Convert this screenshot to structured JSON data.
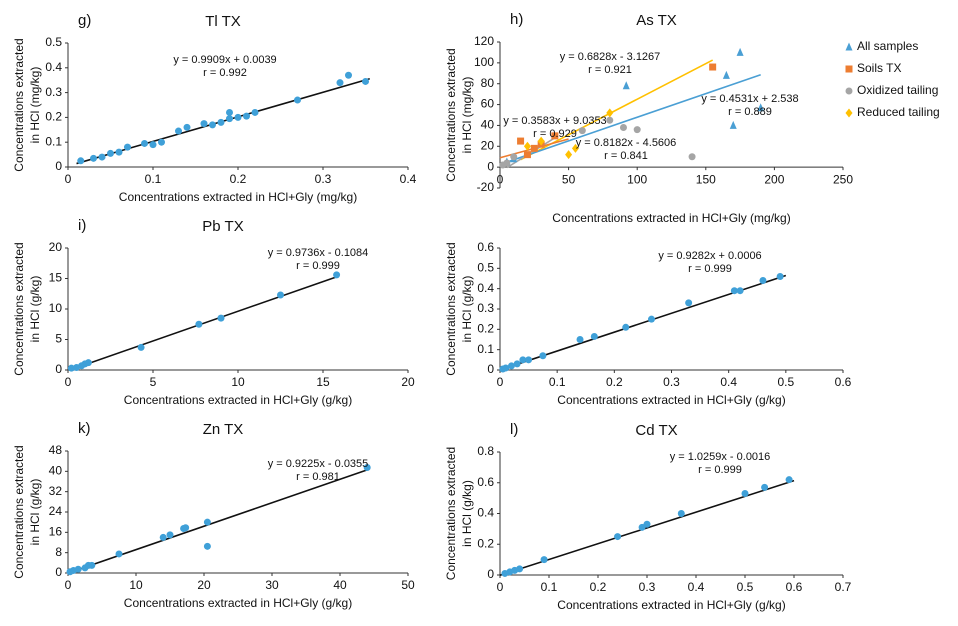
{
  "chart_data": [
    {
      "type": "scatter",
      "panel_label": "g)",
      "title": "Tl TX",
      "xlabel": "Concentrations extracted in HCl+Gly (mg/kg)",
      "ylabel": [
        "Concentrations extracted",
        "in HCl  (mg/kg)"
      ],
      "xlim": [
        0,
        0.4
      ],
      "xticks": [
        0,
        0.1,
        0.2,
        0.3,
        0.4
      ],
      "ylim": [
        0,
        0.5
      ],
      "yticks": [
        0,
        0.1,
        0.2,
        0.3,
        0.4,
        0.5
      ],
      "series": [
        {
          "color": "#3fa0d8",
          "marker": "circle",
          "x": [
            0.015,
            0.03,
            0.04,
            0.05,
            0.06,
            0.07,
            0.09,
            0.1,
            0.11,
            0.13,
            0.14,
            0.16,
            0.17,
            0.18,
            0.19,
            0.19,
            0.2,
            0.21,
            0.22,
            0.27,
            0.32,
            0.33,
            0.35
          ],
          "values": [
            0.025,
            0.035,
            0.04,
            0.055,
            0.06,
            0.08,
            0.095,
            0.09,
            0.1,
            0.145,
            0.16,
            0.175,
            0.17,
            0.18,
            0.22,
            0.195,
            0.2,
            0.205,
            0.22,
            0.27,
            0.34,
            0.37,
            0.345
          ]
        }
      ],
      "fits": [
        {
          "label": "y = 0.9909x + 0.0039",
          "r_label": "r = 0.992",
          "slope": 0.9909,
          "intercept": 0.0039,
          "x": [
            0.01,
            0.355
          ],
          "color": "#111111"
        }
      ]
    },
    {
      "type": "scatter",
      "panel_label": "h)",
      "title": "As TX",
      "xlabel": "Concentrations extracted in HCl+Gly (mg/kg)",
      "ylabel": [
        "Concentrations extracted",
        "in HCl  (mg/kg)"
      ],
      "xlim": [
        0,
        250
      ],
      "xticks": [
        0,
        50,
        100,
        150,
        200,
        250
      ],
      "ylim": [
        -20,
        120
      ],
      "yticks": [
        -20,
        0,
        20,
        40,
        60,
        80,
        100,
        120
      ],
      "series": [
        {
          "name": "All samples",
          "color": "#4a9fd4",
          "marker": "triangle",
          "x": [
            175,
            190,
            170,
            5,
            10,
            92,
            165
          ],
          "values": [
            110,
            57,
            40,
            5,
            8,
            78,
            88
          ]
        },
        {
          "name": "Soils TX",
          "color": "#ed7d31",
          "marker": "square",
          "x": [
            20,
            25,
            30,
            155,
            40,
            15
          ],
          "values": [
            12,
            18,
            22,
            96,
            30,
            25
          ]
        },
        {
          "name": "Oxidized tailing",
          "color": "#a5a5a5",
          "marker": "circle",
          "x": [
            90,
            60,
            10,
            5,
            2,
            80,
            100,
            140
          ],
          "values": [
            38,
            35,
            10,
            4,
            2,
            45,
            36,
            10
          ]
        },
        {
          "name": "Reduced tailing",
          "color": "#ffc000",
          "marker": "diamond",
          "x": [
            50,
            55,
            20,
            30,
            80
          ],
          "values": [
            12,
            18,
            20,
            25,
            52
          ]
        }
      ],
      "fits": [
        {
          "label": "y = 0.6828x - 3.1267",
          "r_label": "r = 0.921",
          "slope": 0.6828,
          "intercept": -3.1267,
          "x": [
            15,
            155
          ],
          "color": "#ffc000"
        },
        {
          "label": "y = 0.4531x + 2.538",
          "r_label": "r = 0.889",
          "slope": 0.4531,
          "intercept": 2.538,
          "x": [
            0,
            190
          ],
          "color": "#4a9fd4"
        },
        {
          "label": "y = 0.3583x + 9.0353",
          "r_label": "r = 0.929",
          "slope": 0.3583,
          "intercept": 9.0353,
          "x": [
            0,
            50
          ],
          "color": "#ed7d31"
        },
        {
          "label": "y = 0.8182x - 4.5606",
          "r_label": "r = 0.841",
          "slope": 0.8182,
          "intercept": -4.5606,
          "x": [
            5,
            40
          ],
          "color": "#a5a5a5"
        }
      ],
      "legend": "right"
    },
    {
      "type": "scatter",
      "panel_label": "i)",
      "title": "Pb TX",
      "xlabel": "Concentrations extracted in HCl+Gly (g/kg)",
      "ylabel": [
        "Concentrations extracted",
        "in HCl  (g/kg)"
      ],
      "xlim": [
        0,
        20
      ],
      "xticks": [
        0,
        5,
        10,
        15,
        20
      ],
      "ylim": [
        0,
        20
      ],
      "yticks": [
        0,
        5,
        10,
        15,
        20
      ],
      "series": [
        {
          "color": "#3fa0d8",
          "marker": "circle",
          "x": [
            0.2,
            0.5,
            0.8,
            1,
            1.2,
            4.3,
            7.7,
            9,
            12.5,
            15.8
          ],
          "values": [
            0.3,
            0.4,
            0.7,
            1,
            1.2,
            3.7,
            7.5,
            8.5,
            12.3,
            15.6
          ]
        }
      ],
      "fits": [
        {
          "label": "y = 0.9736x - 0.1084",
          "r_label": "r = 0.999",
          "slope": 0.9736,
          "intercept": -0.1084,
          "x": [
            0.3,
            15.8
          ],
          "color": "#111111"
        }
      ]
    },
    {
      "type": "scatter",
      "xlabel": "Concentrations extracted in HCl+Gly (g/kg)",
      "ylabel": [
        "Concentrations extracted",
        "in HCl  (g/kg)"
      ],
      "xlim": [
        0,
        0.6
      ],
      "xticks": [
        0,
        0.1,
        0.2,
        0.3,
        0.4,
        0.5,
        0.6
      ],
      "ylim": [
        0,
        0.6
      ],
      "yticks": [
        0,
        0.1,
        0.2,
        0.3,
        0.4,
        0.5,
        0.6
      ],
      "series": [
        {
          "color": "#3fa0d8",
          "marker": "circle",
          "x": [
            0.005,
            0.01,
            0.02,
            0.03,
            0.04,
            0.05,
            0.075,
            0.14,
            0.165,
            0.22,
            0.265,
            0.33,
            0.41,
            0.42,
            0.46,
            0.49
          ],
          "values": [
            0.005,
            0.01,
            0.02,
            0.03,
            0.05,
            0.05,
            0.07,
            0.15,
            0.165,
            0.21,
            0.25,
            0.33,
            0.39,
            0.39,
            0.44,
            0.46
          ]
        }
      ],
      "fits": [
        {
          "label": "y = 0.9282x + 0.0006",
          "r_label": "r = 0.999",
          "slope": 0.9282,
          "intercept": 0.0006,
          "x": [
            0,
            0.5
          ],
          "color": "#111111"
        }
      ]
    },
    {
      "type": "scatter",
      "panel_label": "k)",
      "title": "Zn TX",
      "xlabel": "Concentrations extracted in HCl+Gly (g/kg)",
      "ylabel": [
        "Concentrations extracted",
        "in HCl  (g/kg)"
      ],
      "xlim": [
        0,
        50
      ],
      "xticks": [
        0,
        10,
        20,
        30,
        40,
        50
      ],
      "ylim": [
        0,
        48
      ],
      "yticks": [
        0,
        8,
        16,
        24,
        32,
        40,
        48
      ],
      "series": [
        {
          "color": "#3fa0d8",
          "marker": "circle",
          "x": [
            0.3,
            0.8,
            1.5,
            2.5,
            3,
            3.5,
            7.5,
            14,
            15,
            17,
            17.3,
            20.5,
            20.5,
            44
          ],
          "values": [
            0.5,
            1,
            1.5,
            2,
            3,
            3,
            7.5,
            14,
            15,
            17.5,
            17.8,
            20,
            10.5,
            41.5
          ]
        }
      ],
      "fits": [
        {
          "label": "y = 0.9225x - 0.0355",
          "r_label": "r = 0.981",
          "slope": 0.9225,
          "intercept": -0.0355,
          "x": [
            0,
            44
          ],
          "color": "#111111"
        }
      ]
    },
    {
      "type": "scatter",
      "panel_label": "l)",
      "title": "Cd TX",
      "xlabel": "Concentrations extracted in HCl+Gly (g/kg)",
      "ylabel": [
        "Concentrations extracted",
        "in HCl  (g/kg)"
      ],
      "xlim": [
        0,
        0.7
      ],
      "xticks": [
        0,
        0.1,
        0.2,
        0.3,
        0.4,
        0.5,
        0.6,
        0.7
      ],
      "ylim": [
        0,
        0.8
      ],
      "yticks": [
        0,
        0.2,
        0.4,
        0.6,
        0.8
      ],
      "series": [
        {
          "color": "#3fa0d8",
          "marker": "circle",
          "x": [
            0.01,
            0.02,
            0.03,
            0.04,
            0.09,
            0.24,
            0.29,
            0.3,
            0.37,
            0.5,
            0.54,
            0.59
          ],
          "values": [
            0.01,
            0.02,
            0.03,
            0.04,
            0.1,
            0.25,
            0.31,
            0.33,
            0.4,
            0.53,
            0.57,
            0.62
          ]
        }
      ],
      "fits": [
        {
          "label": "y = 1.0259x - 0.0016",
          "r_label": "r = 0.999",
          "slope": 1.0259,
          "intercept": -0.0016,
          "x": [
            0,
            0.6
          ],
          "color": "#111111"
        }
      ]
    }
  ]
}
